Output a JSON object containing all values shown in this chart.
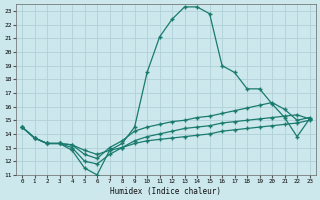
{
  "bg_color": "#cce8ec",
  "grid_color": "#b0d0d8",
  "line_color": "#1a7a6e",
  "xlabel": "Humidex (Indice chaleur)",
  "xlim": [
    -0.5,
    23.5
  ],
  "ylim": [
    11,
    23.5
  ],
  "xticks": [
    0,
    1,
    2,
    3,
    4,
    5,
    6,
    7,
    8,
    9,
    10,
    11,
    12,
    13,
    14,
    15,
    16,
    17,
    18,
    19,
    20,
    21,
    22,
    23
  ],
  "yticks": [
    11,
    12,
    13,
    14,
    15,
    16,
    17,
    18,
    19,
    20,
    21,
    22,
    23
  ],
  "line1_x": [
    0,
    1,
    2,
    3,
    4,
    5,
    6,
    7,
    8,
    9,
    10,
    11,
    12,
    13,
    14,
    15,
    16,
    17,
    18,
    19,
    20,
    21,
    22,
    23
  ],
  "line1_y": [
    14.5,
    13.7,
    13.3,
    13.3,
    12.8,
    11.5,
    11.0,
    12.8,
    13.3,
    14.5,
    18.5,
    21.1,
    22.4,
    23.3,
    23.3,
    22.8,
    19.0,
    18.5,
    17.3,
    17.3,
    16.2,
    15.2,
    13.8,
    15.1
  ],
  "line2_x": [
    0,
    1,
    2,
    3,
    4,
    5,
    6,
    7,
    8,
    9,
    10,
    11,
    12,
    13,
    14,
    15,
    16,
    17,
    18,
    19,
    20,
    21,
    22,
    23
  ],
  "line2_y": [
    14.5,
    13.7,
    13.3,
    13.3,
    13.2,
    12.5,
    12.2,
    13.0,
    13.5,
    14.2,
    14.5,
    14.7,
    14.9,
    15.0,
    15.2,
    15.3,
    15.5,
    15.7,
    15.9,
    16.1,
    16.3,
    15.8,
    15.0,
    15.2
  ],
  "line3_x": [
    0,
    1,
    2,
    3,
    4,
    5,
    6,
    7,
    8,
    9,
    10,
    11,
    12,
    13,
    14,
    15,
    16,
    17,
    18,
    19,
    20,
    21,
    22,
    23
  ],
  "line3_y": [
    14.5,
    13.7,
    13.3,
    13.3,
    13.0,
    12.0,
    11.8,
    12.5,
    13.0,
    13.5,
    13.8,
    14.0,
    14.2,
    14.4,
    14.5,
    14.6,
    14.8,
    14.9,
    15.0,
    15.1,
    15.2,
    15.3,
    15.4,
    15.1
  ],
  "line4_x": [
    0,
    1,
    2,
    3,
    4,
    5,
    6,
    7,
    8,
    9,
    10,
    11,
    12,
    13,
    14,
    15,
    16,
    17,
    18,
    19,
    20,
    21,
    22,
    23
  ],
  "line4_y": [
    14.5,
    13.7,
    13.3,
    13.3,
    13.2,
    12.8,
    12.5,
    12.8,
    13.0,
    13.3,
    13.5,
    13.6,
    13.7,
    13.8,
    13.9,
    14.0,
    14.2,
    14.3,
    14.4,
    14.5,
    14.6,
    14.7,
    14.8,
    15.0
  ]
}
